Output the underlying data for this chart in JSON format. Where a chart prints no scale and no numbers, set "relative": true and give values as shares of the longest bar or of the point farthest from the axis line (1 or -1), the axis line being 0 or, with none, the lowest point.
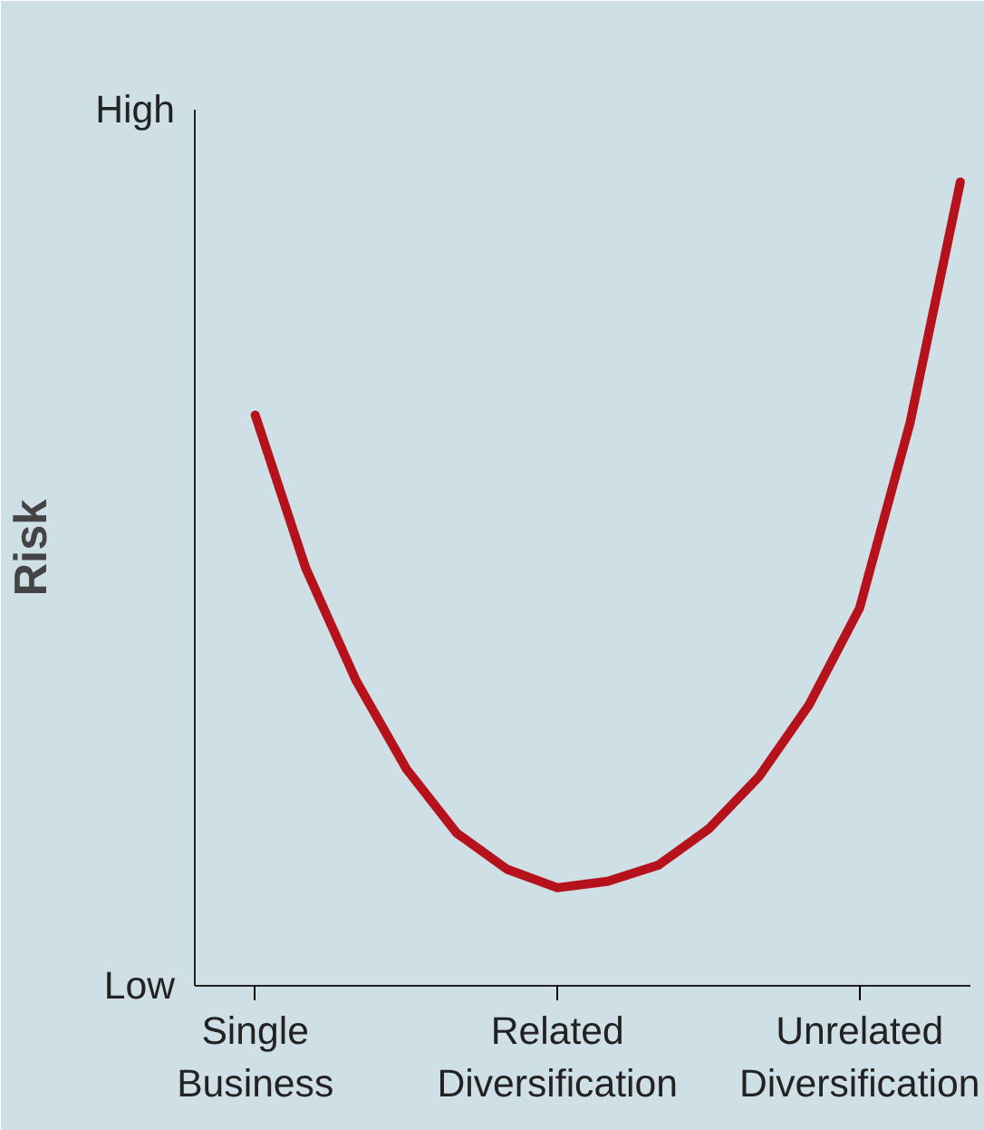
{
  "chart_data": {
    "type": "line",
    "relative": true,
    "ylabel": "Risk",
    "annotations": [
      "High",
      "Low"
    ],
    "categories": [
      "Single\nBusiness",
      null,
      null,
      null,
      null,
      null,
      "Related\nDiversification",
      null,
      null,
      null,
      null,
      null,
      "Unrelated\nDiversification",
      null,
      null
    ],
    "tick_labels": "x",
    "grid": false,
    "series": [
      {
        "color": "#b5121b",
        "values": [
          0.71,
          0.52,
          0.38,
          0.27,
          0.19,
          0.145,
          0.122,
          0.13,
          0.15,
          0.195,
          0.26,
          0.35,
          0.47,
          0.7,
          1.0
        ]
      }
    ]
  }
}
